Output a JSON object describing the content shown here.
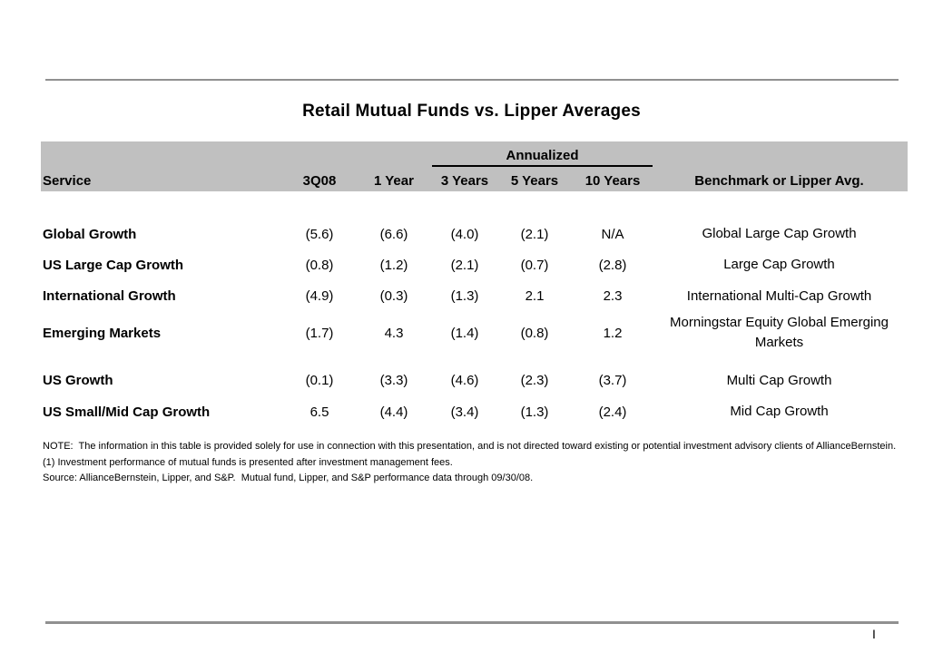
{
  "title": "Retail Mutual Funds vs. Lipper Averages",
  "table": {
    "annualized_label": "Annualized",
    "headers": {
      "service": "Service",
      "q": "3Q08",
      "y1": "1 Year",
      "y3": "3 Years",
      "y5": "5 Years",
      "y10": "10 Years",
      "benchmark": "Benchmark or Lipper Avg."
    },
    "rows": [
      {
        "service": "Global Growth",
        "q": "(5.6)",
        "y1": "(6.6)",
        "y3": "(4.0)",
        "y5": "(2.1)",
        "y10": "N/A",
        "benchmark": "Global Large Cap Growth"
      },
      {
        "service": "US Large Cap Growth",
        "q": "(0.8)",
        "y1": "(1.2)",
        "y3": "(2.1)",
        "y5": "(0.7)",
        "y10": "(2.8)",
        "benchmark": "Large Cap Growth"
      },
      {
        "service": "International Growth",
        "q": "(4.9)",
        "y1": "(0.3)",
        "y3": "(1.3)",
        "y5": "2.1",
        "y10": "2.3",
        "benchmark": "International Multi-Cap Growth"
      },
      {
        "service": "Emerging Markets",
        "q": "(1.7)",
        "y1": "4.3",
        "y3": "(1.4)",
        "y5": "(0.8)",
        "y10": "1.2",
        "benchmark": "Morningstar Equity Global Emerging Markets"
      },
      {
        "service": "US Growth",
        "q": "(0.1)",
        "y1": "(3.3)",
        "y3": "(4.6)",
        "y5": "(2.3)",
        "y10": "(3.7)",
        "benchmark": "Multi Cap Growth"
      },
      {
        "service": "US Small/Mid Cap Growth",
        "q": "6.5",
        "y1": "(4.4)",
        "y3": "(3.4)",
        "y5": "(1.3)",
        "y10": "(2.4)",
        "benchmark": "Mid Cap Growth"
      }
    ]
  },
  "footnotes": {
    "note": "NOTE:  The information in this table is provided solely for use in connection with this presentation, and is not directed toward existing or potential investment advisory clients of AllianceBernstein.",
    "fee_note": "(1) Investment performance of mutual funds is presented after investment management fees.",
    "source": "Source: AllianceBernstein, Lipper, and S&P.  Mutual fund, Lipper, and S&P performance data through 09/30/08."
  },
  "footer": {
    "page_marker": "I"
  },
  "colors": {
    "header_band": "#c0c0c0",
    "rule_gray": "#909090",
    "text": "#000000"
  }
}
